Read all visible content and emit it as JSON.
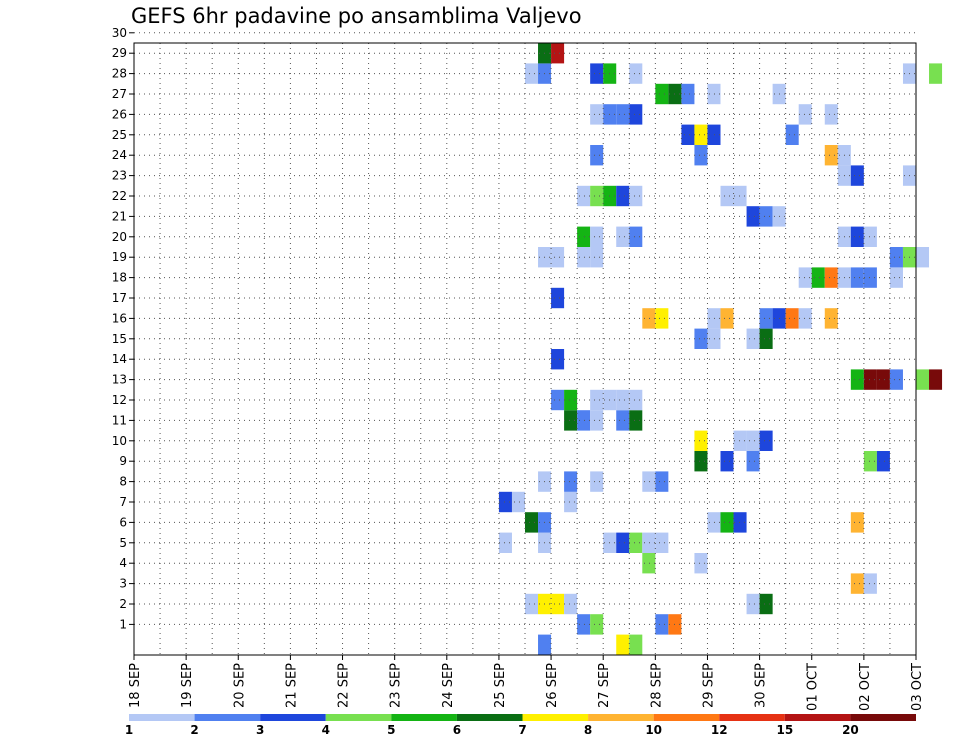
{
  "chart_data": {
    "type": "heatmap",
    "title": "GEFS 6hr padavine po ansamblima Valjevo",
    "x_ticks": [
      "18 SEP",
      "19 SEP",
      "20 SEP",
      "21 SEP",
      "22 SEP",
      "23 SEP",
      "24 SEP",
      "25 SEP",
      "26 SEP",
      "27 SEP",
      "28 SEP",
      "29 SEP",
      "30 SEP",
      "01 OCT",
      "02 OCT",
      "03 OCT"
    ],
    "xlim": [
      "18 SEP",
      "03 OCT"
    ],
    "y_ticks": [
      1,
      2,
      3,
      4,
      5,
      6,
      7,
      8,
      9,
      10,
      11,
      12,
      13,
      14,
      15,
      16,
      17,
      18,
      19,
      20,
      21,
      22,
      23,
      24,
      25,
      26,
      27,
      28,
      29,
      30
    ],
    "ylim": [
      0,
      30
    ],
    "grid": true,
    "legend": {
      "placement": "bottom",
      "labels": [
        "1",
        "2",
        "3",
        "4",
        "5",
        "6",
        "7",
        "8",
        "10",
        "12",
        "15",
        "20"
      ],
      "colors": [
        "#b4c8f5",
        "#5080f0",
        "#1e46dc",
        "#78e050",
        "#14b414",
        "#0a6e14",
        "#fff000",
        "#ffb432",
        "#ff7814",
        "#e63214",
        "#b41414",
        "#780a0a"
      ]
    },
    "colors": {
      "1": "#b4c8f5",
      "2": "#5080f0",
      "3": "#1e46dc",
      "4": "#78e050",
      "5": "#14b414",
      "6": "#0a6e14",
      "7": "#fff000",
      "8": "#ffb432",
      "9": "#ff7814",
      "10": "#e63214",
      "11": "#b41414",
      "12": "#780a0a"
    },
    "cells": [
      [
        0,
        "25 SEP 18Z",
        2
      ],
      [
        0,
        "27 SEP 06Z",
        7
      ],
      [
        0,
        "27 SEP 12Z",
        4
      ],
      [
        1,
        "26 SEP 12Z",
        2
      ],
      [
        1,
        "26 SEP 18Z",
        4
      ],
      [
        1,
        "28 SEP 00Z",
        2
      ],
      [
        1,
        "28 SEP 06Z",
        9
      ],
      [
        2,
        "25 SEP 12Z",
        1
      ],
      [
        2,
        "25 SEP 18Z",
        7
      ],
      [
        2,
        "26 SEP 00Z",
        7
      ],
      [
        2,
        "26 SEP 06Z",
        1
      ],
      [
        2,
        "29 SEP 18Z",
        1
      ],
      [
        2,
        "30 SEP 00Z",
        6
      ],
      [
        3,
        "01 OCT 18Z",
        8
      ],
      [
        3,
        "02 OCT 00Z",
        1
      ],
      [
        4,
        "27 SEP 18Z",
        4
      ],
      [
        4,
        "28 SEP 18Z",
        1
      ],
      [
        5,
        "25 SEP 00Z",
        1
      ],
      [
        5,
        "25 SEP 18Z",
        1
      ],
      [
        5,
        "27 SEP 00Z",
        1
      ],
      [
        5,
        "27 SEP 06Z",
        3
      ],
      [
        5,
        "27 SEP 12Z",
        4
      ],
      [
        5,
        "27 SEP 18Z",
        1
      ],
      [
        5,
        "28 SEP 00Z",
        1
      ],
      [
        6,
        "25 SEP 12Z",
        6
      ],
      [
        6,
        "25 SEP 18Z",
        2
      ],
      [
        6,
        "29 SEP 00Z",
        1
      ],
      [
        6,
        "29 SEP 06Z",
        5
      ],
      [
        6,
        "29 SEP 12Z",
        3
      ],
      [
        6,
        "01 OCT 18Z",
        8
      ],
      [
        7,
        "25 SEP 00Z",
        3
      ],
      [
        7,
        "25 SEP 06Z",
        1
      ],
      [
        7,
        "26 SEP 06Z",
        1
      ],
      [
        8,
        "25 SEP 18Z",
        1
      ],
      [
        8,
        "26 SEP 06Z",
        2
      ],
      [
        8,
        "26 SEP 18Z",
        1
      ],
      [
        8,
        "27 SEP 18Z",
        1
      ],
      [
        8,
        "28 SEP 00Z",
        2
      ],
      [
        9,
        "28 SEP 18Z",
        6
      ],
      [
        9,
        "29 SEP 06Z",
        3
      ],
      [
        9,
        "29 SEP 18Z",
        2
      ],
      [
        9,
        "02 OCT 00Z",
        4
      ],
      [
        9,
        "02 OCT 06Z",
        3
      ],
      [
        10,
        "28 SEP 18Z",
        7
      ],
      [
        10,
        "29 SEP 12Z",
        1
      ],
      [
        10,
        "29 SEP 18Z",
        1
      ],
      [
        10,
        "30 SEP 00Z",
        3
      ],
      [
        11,
        "26 SEP 06Z",
        6
      ],
      [
        11,
        "26 SEP 12Z",
        2
      ],
      [
        11,
        "26 SEP 18Z",
        1
      ],
      [
        11,
        "27 SEP 06Z",
        2
      ],
      [
        11,
        "27 SEP 12Z",
        6
      ],
      [
        12,
        "26 SEP 00Z",
        2
      ],
      [
        12,
        "26 SEP 06Z",
        5
      ],
      [
        12,
        "26 SEP 18Z",
        1
      ],
      [
        12,
        "27 SEP 00Z",
        1
      ],
      [
        12,
        "27 SEP 06Z",
        1
      ],
      [
        12,
        "27 SEP 12Z",
        1
      ],
      [
        13,
        "01 OCT 18Z",
        5
      ],
      [
        13,
        "02 OCT 00Z",
        12
      ],
      [
        13,
        "02 OCT 06Z",
        12
      ],
      [
        13,
        "02 OCT 12Z",
        2
      ],
      [
        13,
        "03 OCT 00Z",
        4
      ],
      [
        13,
        "03 OCT 06Z",
        12
      ],
      [
        14,
        "26 SEP 00Z",
        3
      ],
      [
        15,
        "28 SEP 18Z",
        2
      ],
      [
        15,
        "29 SEP 00Z",
        1
      ],
      [
        15,
        "29 SEP 18Z",
        1
      ],
      [
        15,
        "30 SEP 00Z",
        6
      ],
      [
        16,
        "27 SEP 18Z",
        8
      ],
      [
        16,
        "28 SEP 00Z",
        7
      ],
      [
        16,
        "29 SEP 00Z",
        1
      ],
      [
        16,
        "29 SEP 06Z",
        8
      ],
      [
        16,
        "30 SEP 00Z",
        2
      ],
      [
        16,
        "30 SEP 06Z",
        3
      ],
      [
        16,
        "30 SEP 12Z",
        9
      ],
      [
        16,
        "30 SEP 18Z",
        1
      ],
      [
        16,
        "01 OCT 06Z",
        8
      ],
      [
        17,
        "26 SEP 00Z",
        3
      ],
      [
        18,
        "30 SEP 18Z",
        1
      ],
      [
        18,
        "01 OCT 00Z",
        5
      ],
      [
        18,
        "01 OCT 06Z",
        9
      ],
      [
        18,
        "01 OCT 12Z",
        1
      ],
      [
        18,
        "01 OCT 18Z",
        2
      ],
      [
        18,
        "02 OCT 00Z",
        2
      ],
      [
        18,
        "02 OCT 12Z",
        1
      ],
      [
        19,
        "25 SEP 18Z",
        1
      ],
      [
        19,
        "26 SEP 00Z",
        1
      ],
      [
        19,
        "26 SEP 12Z",
        1
      ],
      [
        19,
        "26 SEP 18Z",
        1
      ],
      [
        19,
        "02 OCT 12Z",
        2
      ],
      [
        19,
        "02 OCT 18Z",
        4
      ],
      [
        19,
        "03 OCT 00Z",
        1
      ],
      [
        20,
        "26 SEP 12Z",
        5
      ],
      [
        20,
        "26 SEP 18Z",
        1
      ],
      [
        20,
        "27 SEP 06Z",
        1
      ],
      [
        20,
        "27 SEP 12Z",
        2
      ],
      [
        20,
        "01 OCT 12Z",
        1
      ],
      [
        20,
        "01 OCT 18Z",
        3
      ],
      [
        20,
        "02 OCT 00Z",
        1
      ],
      [
        21,
        "29 SEP 18Z",
        3
      ],
      [
        21,
        "30 SEP 00Z",
        2
      ],
      [
        21,
        "30 SEP 06Z",
        1
      ],
      [
        22,
        "26 SEP 12Z",
        1
      ],
      [
        22,
        "26 SEP 18Z",
        4
      ],
      [
        22,
        "27 SEP 00Z",
        5
      ],
      [
        22,
        "27 SEP 06Z",
        3
      ],
      [
        22,
        "27 SEP 12Z",
        1
      ],
      [
        22,
        "29 SEP 06Z",
        1
      ],
      [
        22,
        "29 SEP 12Z",
        1
      ],
      [
        23,
        "01 OCT 12Z",
        1
      ],
      [
        23,
        "01 OCT 18Z",
        3
      ],
      [
        23,
        "02 OCT 18Z",
        1
      ],
      [
        24,
        "26 SEP 18Z",
        2
      ],
      [
        24,
        "28 SEP 18Z",
        2
      ],
      [
        24,
        "01 OCT 06Z",
        8
      ],
      [
        24,
        "01 OCT 12Z",
        1
      ],
      [
        25,
        "28 SEP 12Z",
        3
      ],
      [
        25,
        "28 SEP 18Z",
        7
      ],
      [
        25,
        "29 SEP 00Z",
        3
      ],
      [
        25,
        "30 SEP 12Z",
        2
      ],
      [
        26,
        "26 SEP 18Z",
        1
      ],
      [
        26,
        "27 SEP 00Z",
        2
      ],
      [
        26,
        "27 SEP 06Z",
        2
      ],
      [
        26,
        "27 SEP 12Z",
        3
      ],
      [
        26,
        "30 SEP 18Z",
        1
      ],
      [
        26,
        "01 OCT 06Z",
        1
      ],
      [
        27,
        "28 SEP 00Z",
        5
      ],
      [
        27,
        "28 SEP 06Z",
        6
      ],
      [
        27,
        "28 SEP 12Z",
        2
      ],
      [
        27,
        "29 SEP 00Z",
        1
      ],
      [
        27,
        "30 SEP 06Z",
        1
      ],
      [
        28,
        "25 SEP 12Z",
        1
      ],
      [
        28,
        "25 SEP 18Z",
        2
      ],
      [
        28,
        "26 SEP 18Z",
        3
      ],
      [
        28,
        "27 SEP 00Z",
        5
      ],
      [
        28,
        "27 SEP 12Z",
        1
      ],
      [
        28,
        "02 OCT 18Z",
        1
      ],
      [
        28,
        "03 OCT 06Z",
        4
      ],
      [
        29,
        "25 SEP 18Z",
        6
      ],
      [
        29,
        "26 SEP 00Z",
        11
      ]
    ]
  }
}
